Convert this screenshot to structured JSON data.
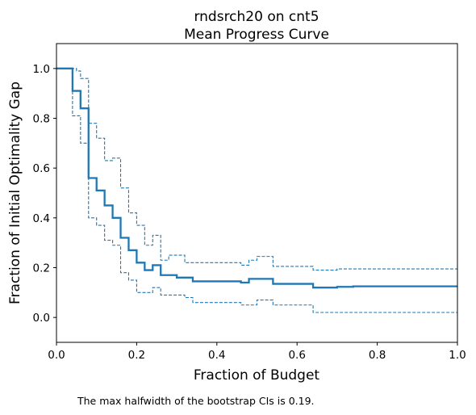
{
  "chart_data": {
    "type": "line",
    "title": "rndsrch20 on cnt5",
    "subtitle": "Mean Progress Curve",
    "xlabel": "Fraction of Budget",
    "ylabel": "Fraction of Initial Optimality Gap",
    "xlim": [
      0,
      1
    ],
    "ylim": [
      -0.1,
      1.1
    ],
    "xticks": [
      {
        "value": 0.0,
        "label": "0.0"
      },
      {
        "value": 0.2,
        "label": "0.2"
      },
      {
        "value": 0.4,
        "label": "0.4"
      },
      {
        "value": 0.6,
        "label": "0.6"
      },
      {
        "value": 0.8,
        "label": "0.8"
      },
      {
        "value": 1.0,
        "label": "1.0"
      }
    ],
    "yticks": [
      {
        "value": 0.0,
        "label": "0.0"
      },
      {
        "value": 0.2,
        "label": "0.2"
      },
      {
        "value": 0.4,
        "label": "0.4"
      },
      {
        "value": 0.6,
        "label": "0.6"
      },
      {
        "value": 0.8,
        "label": "0.8"
      },
      {
        "value": 1.0,
        "label": "1.0"
      }
    ],
    "grid": false,
    "color": "#1f77b4",
    "series": [
      {
        "style": "solid",
        "step": true,
        "points": [
          [
            0,
            1.0
          ],
          [
            0.04,
            0.91
          ],
          [
            0.06,
            0.84
          ],
          [
            0.08,
            0.56
          ],
          [
            0.1,
            0.51
          ],
          [
            0.12,
            0.45
          ],
          [
            0.14,
            0.4
          ],
          [
            0.16,
            0.32
          ],
          [
            0.18,
            0.27
          ],
          [
            0.2,
            0.22
          ],
          [
            0.22,
            0.19
          ],
          [
            0.24,
            0.21
          ],
          [
            0.26,
            0.17
          ],
          [
            0.3,
            0.16
          ],
          [
            0.34,
            0.145
          ],
          [
            0.46,
            0.14
          ],
          [
            0.48,
            0.155
          ],
          [
            0.54,
            0.135
          ],
          [
            0.64,
            0.12
          ],
          [
            0.7,
            0.123
          ],
          [
            0.74,
            0.125
          ],
          [
            1.0,
            0.125
          ]
        ]
      },
      {
        "style": "dashed",
        "step": true,
        "points": [
          [
            0,
            1.0
          ],
          [
            0.05,
            0.99
          ],
          [
            0.06,
            0.96
          ],
          [
            0.08,
            0.78
          ],
          [
            0.1,
            0.72
          ],
          [
            0.12,
            0.63
          ],
          [
            0.14,
            0.64
          ],
          [
            0.16,
            0.52
          ],
          [
            0.18,
            0.42
          ],
          [
            0.2,
            0.37
          ],
          [
            0.22,
            0.29
          ],
          [
            0.24,
            0.33
          ],
          [
            0.26,
            0.23
          ],
          [
            0.28,
            0.25
          ],
          [
            0.32,
            0.22
          ],
          [
            0.46,
            0.21
          ],
          [
            0.48,
            0.23
          ],
          [
            0.5,
            0.245
          ],
          [
            0.54,
            0.205
          ],
          [
            0.64,
            0.19
          ],
          [
            0.7,
            0.195
          ],
          [
            1.0,
            0.195
          ]
        ]
      },
      {
        "style": "dashed",
        "step": true,
        "points": [
          [
            0,
            1.0
          ],
          [
            0.04,
            0.81
          ],
          [
            0.06,
            0.7
          ],
          [
            0.08,
            0.4
          ],
          [
            0.1,
            0.37
          ],
          [
            0.12,
            0.31
          ],
          [
            0.14,
            0.29
          ],
          [
            0.16,
            0.18
          ],
          [
            0.18,
            0.15
          ],
          [
            0.2,
            0.1
          ],
          [
            0.24,
            0.12
          ],
          [
            0.26,
            0.09
          ],
          [
            0.32,
            0.08
          ],
          [
            0.34,
            0.06
          ],
          [
            0.46,
            0.05
          ],
          [
            0.5,
            0.07
          ],
          [
            0.54,
            0.05
          ],
          [
            0.64,
            0.02
          ],
          [
            1.0,
            0.02
          ]
        ]
      }
    ]
  },
  "note": "The max halfwidth of the bootstrap CIs is 0.19."
}
